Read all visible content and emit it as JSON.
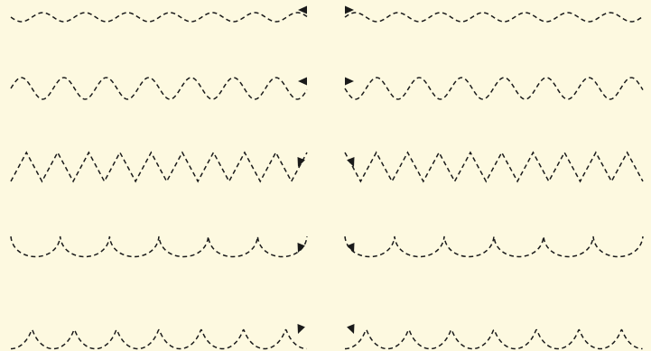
{
  "canvas": {
    "background": "#fdf9e0",
    "stroke_color": "#1a1a1a"
  },
  "patterns": [
    {
      "name": "gentle-wave",
      "kind": "wave",
      "arrow": "toward-center"
    },
    {
      "name": "wave",
      "kind": "wave-tall",
      "arrow": "toward-center"
    },
    {
      "name": "zigzag",
      "kind": "zigzag",
      "arrow": "toward-center"
    },
    {
      "name": "garland",
      "kind": "garland",
      "arrow": "toward-center"
    },
    {
      "name": "loops",
      "kind": "loops",
      "arrow": "toward-center"
    }
  ]
}
